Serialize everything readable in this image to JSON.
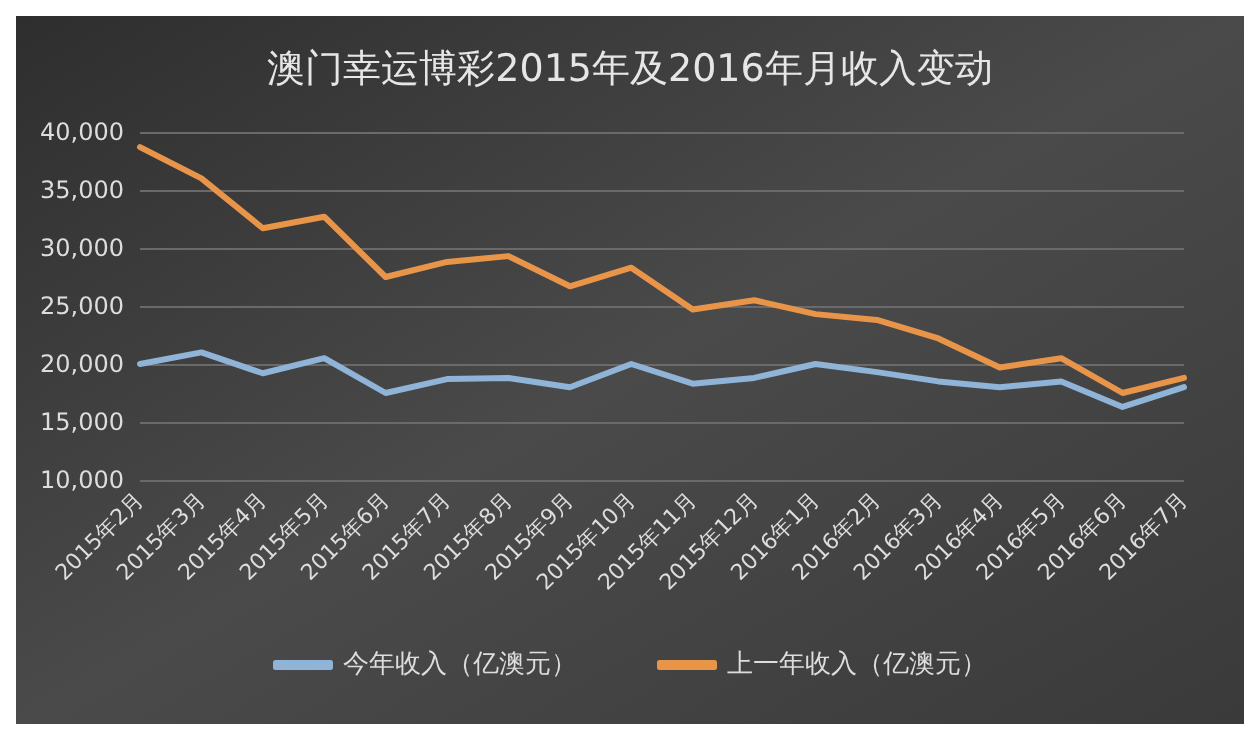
{
  "chart_data": {
    "type": "line",
    "title": "澳门幸运博彩2015年及2016年月收入变动",
    "categories": [
      "2015年2月",
      "2015年3月",
      "2015年4月",
      "2015年5月",
      "2015年6月",
      "2015年7月",
      "2015年8月",
      "2015年9月",
      "2015年10月",
      "2015年11月",
      "2015年12月",
      "2016年1月",
      "2016年2月",
      "2016年3月",
      "2016年4月",
      "2016年5月",
      "2016年6月",
      "2016年7月"
    ],
    "series": [
      {
        "name": "今年收入（亿澳元）",
        "color": "#8fb4d8",
        "values": [
          20000,
          21000,
          19200,
          20500,
          17500,
          18700,
          18800,
          18000,
          20000,
          18300,
          18800,
          20000,
          19300,
          18500,
          18000,
          18500,
          16300,
          18000
        ]
      },
      {
        "name": "上一年收入（亿澳元）",
        "color": "#e8954a",
        "values": [
          38700,
          36000,
          31700,
          32700,
          27500,
          28800,
          29300,
          26700,
          28300,
          24700,
          25500,
          24300,
          23800,
          22200,
          19700,
          20500,
          17500,
          18800
        ]
      }
    ],
    "ylim": [
      10000,
      40000
    ],
    "yticks": [
      {
        "value": 10000,
        "label": "10,000"
      },
      {
        "value": 15000,
        "label": "15,000"
      },
      {
        "value": 20000,
        "label": "20,000"
      },
      {
        "value": 25000,
        "label": "25,000"
      },
      {
        "value": 30000,
        "label": "30,000"
      },
      {
        "value": 35000,
        "label": "35,000"
      },
      {
        "value": 40000,
        "label": "40,000"
      }
    ],
    "grid": "y",
    "legend": "bottom",
    "marker": "none",
    "line_style": "solid"
  }
}
